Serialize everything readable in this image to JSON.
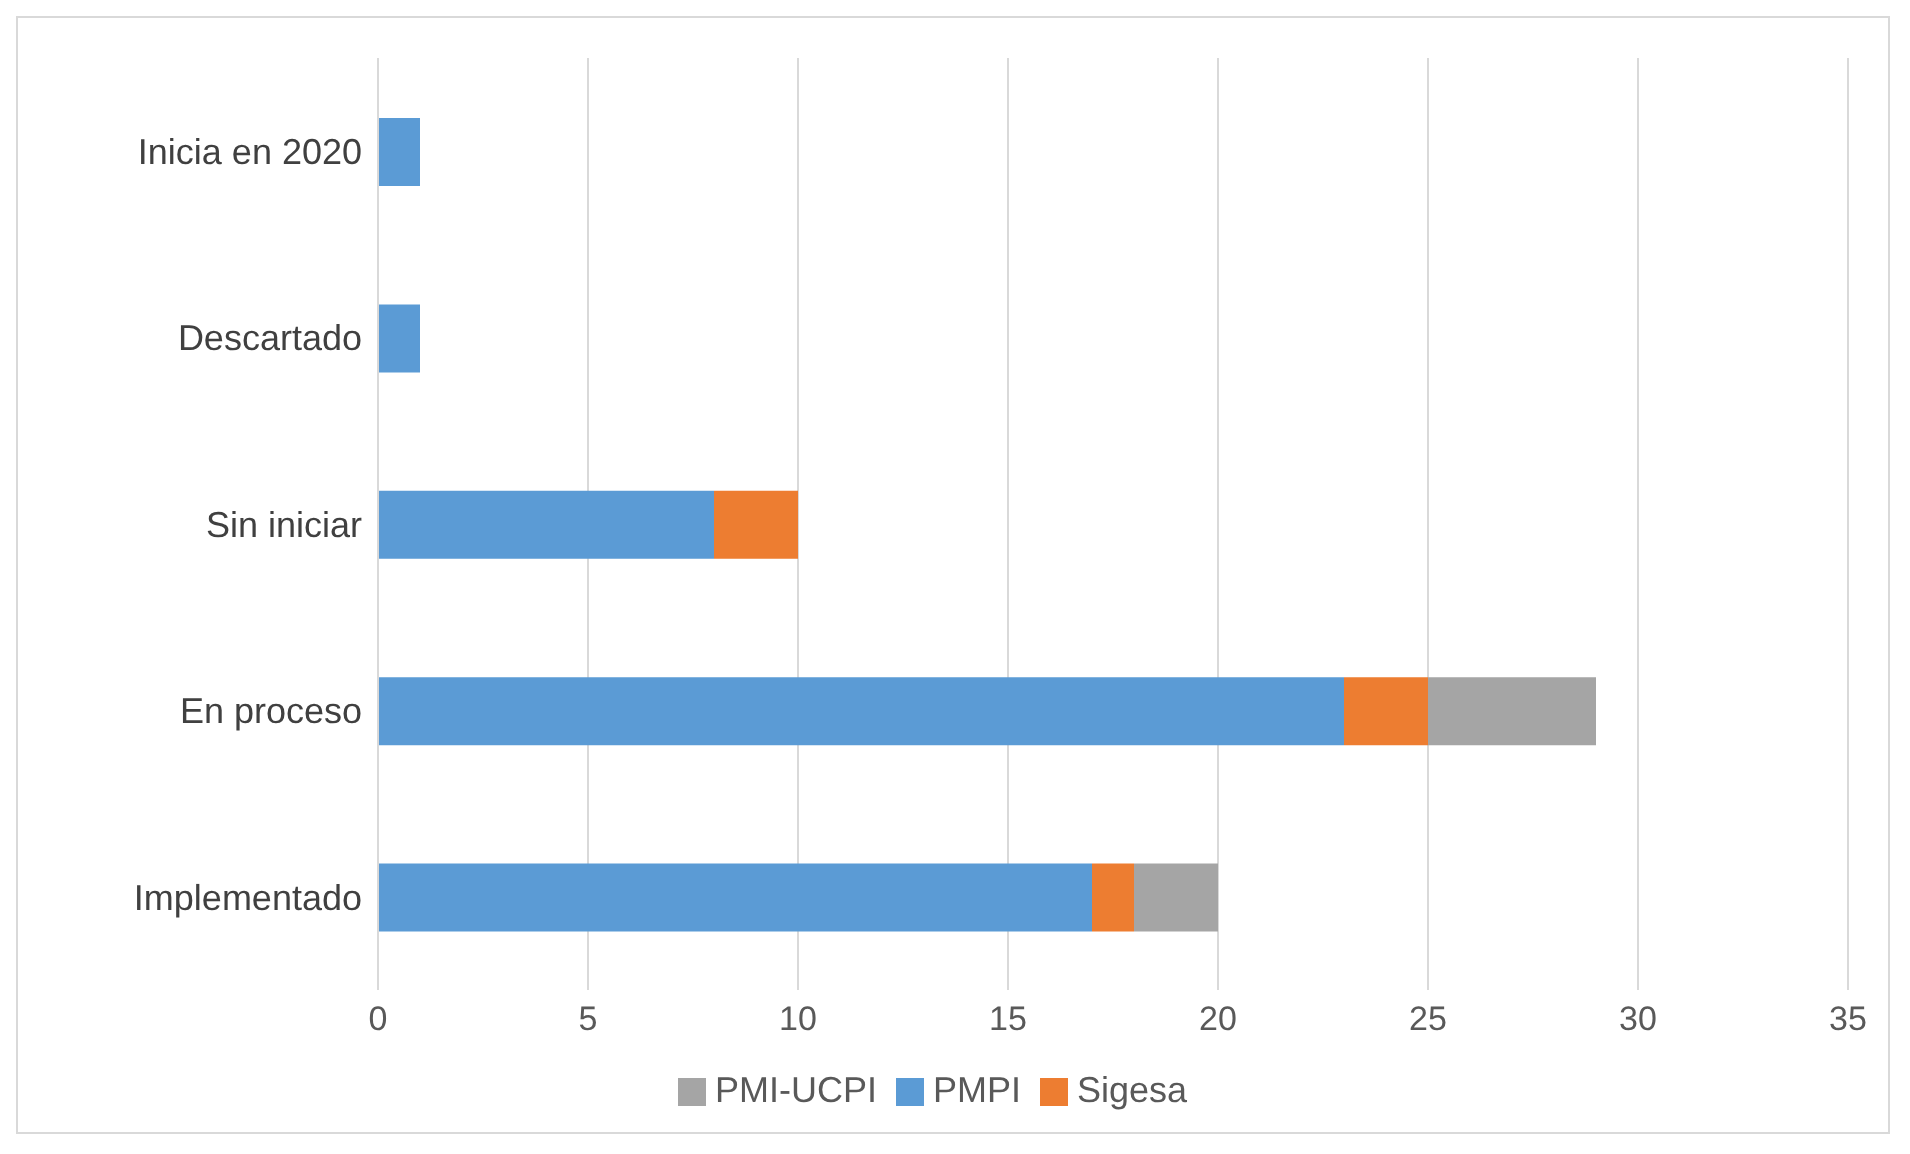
{
  "chart_data": {
    "type": "bar",
    "orientation": "horizontal",
    "stacked": true,
    "categories": [
      "Inicia en 2020",
      "Descartado",
      "Sin iniciar",
      "En proceso",
      "Implementado"
    ],
    "series": [
      {
        "name": "PMPI",
        "color": "#5b9bd5",
        "values": [
          1,
          1,
          8,
          23,
          17
        ]
      },
      {
        "name": "Sigesa",
        "color": "#ed7d31",
        "values": [
          0,
          0,
          2,
          2,
          1
        ]
      },
      {
        "name": "PMI-UCPI",
        "color": "#a5a5a5",
        "values": [
          0,
          0,
          0,
          4,
          2
        ]
      }
    ],
    "xlim": [
      0,
      35
    ],
    "xticks": [
      0,
      5,
      10,
      15,
      20,
      25,
      30,
      35
    ],
    "grid": "x",
    "legend": "bottom"
  }
}
